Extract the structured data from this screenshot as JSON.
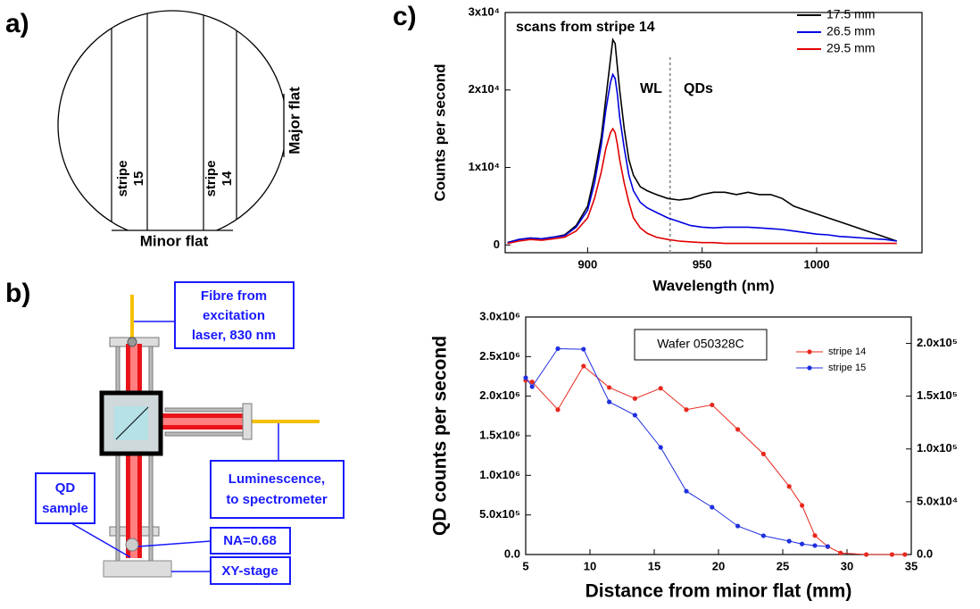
{
  "panel_a": {
    "label": "a)",
    "stripe_15": [
      "stripe",
      "15"
    ],
    "stripe_14": [
      "stripe",
      "14"
    ],
    "minor_flat": "Minor flat",
    "major_flat": "Major flat"
  },
  "panel_b": {
    "label": "b)",
    "fibre": [
      "Fibre from",
      "excitation",
      "laser, 830 nm"
    ],
    "luminescence": [
      "Luminescence,",
      "to spectrometer"
    ],
    "sample": [
      "QD",
      "sample"
    ],
    "na": "NA=0.68",
    "stage": "XY-stage"
  },
  "panel_c_label": "c)",
  "chart_data": [
    {
      "type": "line",
      "xlabel": "Wavelength (nm)",
      "ylabel": "Counts per second",
      "annotations": [
        "scans from stripe 14",
        "WL",
        "QDs"
      ],
      "divider_x": 936,
      "xlim": [
        864,
        1046
      ],
      "xticks": [
        900,
        950,
        1000
      ],
      "ylim": [
        -1000,
        30000
      ],
      "yticks": [
        0,
        {
          "value": 10000,
          "label": "1x10⁴"
        },
        {
          "value": 20000,
          "label": "2x10⁴"
        },
        {
          "value": 30000,
          "label": "3x10⁴"
        }
      ],
      "legend": "upper right",
      "x": [
        865,
        870,
        875,
        880,
        885,
        890,
        895,
        900,
        903,
        906,
        908,
        910,
        911,
        912,
        913,
        914,
        916,
        918,
        920,
        923,
        926,
        930,
        935,
        940,
        945,
        950,
        955,
        960,
        965,
        970,
        975,
        980,
        985,
        990,
        995,
        1000,
        1005,
        1010,
        1015,
        1020,
        1025,
        1030,
        1035
      ],
      "series": [
        {
          "name": "17.5 mm",
          "color": "#000000",
          "values": [
            300,
            700,
            900,
            800,
            1000,
            1300,
            2500,
            5000,
            9000,
            14000,
            19000,
            24000,
            26500,
            26000,
            23000,
            20000,
            15000,
            11000,
            9000,
            7500,
            7000,
            6500,
            6000,
            5800,
            6000,
            6500,
            6800,
            6800,
            6500,
            6800,
            6500,
            6500,
            6000,
            5000,
            4500,
            4000,
            3500,
            3000,
            2500,
            2000,
            1500,
            1000,
            500
          ]
        },
        {
          "name": "26.5 mm",
          "color": "#0000e0",
          "values": [
            300,
            700,
            900,
            800,
            1000,
            1200,
            2300,
            4500,
            8000,
            13000,
            17500,
            21000,
            22000,
            21500,
            19500,
            16500,
            12500,
            9000,
            7000,
            5500,
            4800,
            4200,
            3500,
            3000,
            2500,
            2300,
            2200,
            2300,
            2300,
            2300,
            2200,
            2100,
            2000,
            1800,
            1600,
            1400,
            1300,
            1100,
            1000,
            900,
            800,
            700,
            500
          ]
        },
        {
          "name": "29.5 mm",
          "color": "#e00000",
          "values": [
            200,
            500,
            700,
            600,
            800,
            1000,
            1800,
            3500,
            6000,
            9500,
            12500,
            14500,
            15000,
            14500,
            13000,
            11000,
            8000,
            5500,
            3500,
            2200,
            1500,
            1000,
            700,
            500,
            400,
            300,
            300,
            200,
            200,
            200,
            200,
            200,
            200,
            200,
            200,
            200,
            200,
            200,
            200,
            200,
            200,
            200,
            200
          ]
        }
      ]
    },
    {
      "type": "line",
      "markers": true,
      "xlabel": "Distance from minor flat (mm)",
      "ylabel": "QD counts per second",
      "annotations": [
        "Wafer 050328C"
      ],
      "xlim": [
        5,
        35
      ],
      "xticks": [
        5,
        10,
        15,
        20,
        25,
        30,
        35
      ],
      "ylim": [
        0,
        3000000
      ],
      "yticks": [
        {
          "value": 0,
          "label": "0.0"
        },
        {
          "value": 500000,
          "label": "5.0x10⁵"
        },
        {
          "value": 1000000,
          "label": "1.0x10⁶"
        },
        {
          "value": 1500000,
          "label": "1.5x10⁶"
        },
        {
          "value": 2000000,
          "label": "2.0x10⁶"
        },
        {
          "value": 2500000,
          "label": "2.5x10⁶"
        },
        {
          "value": 3000000,
          "label": "3.0x10⁶"
        }
      ],
      "y2lim": [
        0,
        225000
      ],
      "y2ticks": [
        {
          "value": 0,
          "label": "0.0"
        },
        {
          "value": 50000,
          "label": "5.0x10⁴"
        },
        {
          "value": 100000,
          "label": "1.0x10⁵"
        },
        {
          "value": 150000,
          "label": "1.5x10⁵"
        },
        {
          "value": 200000,
          "label": "2.0x10⁵"
        }
      ],
      "legend": "upper right",
      "series": [
        {
          "name": "stripe 14",
          "color": "#e8281e",
          "x": [
            5,
            5.5,
            7.5,
            9.5,
            11.5,
            13.5,
            15.5,
            17.5,
            19.5,
            21.5,
            23.5,
            25.5,
            26.5,
            27.5,
            28.5,
            29.5,
            31.5,
            33.5,
            34.5
          ],
          "values": [
            2200000,
            2180000,
            1830000,
            2380000,
            2110000,
            1970000,
            2100000,
            1830000,
            1890000,
            1580000,
            1270000,
            860000,
            620000,
            240000,
            100000,
            20000,
            0,
            0,
            0
          ]
        },
        {
          "name": "stripe 15",
          "color": "#1f2fe0",
          "axis": "y2",
          "x": [
            5,
            5.5,
            7.5,
            9.5,
            11.5,
            13.5,
            15.5,
            17.5,
            19.5,
            21.5,
            23.5,
            25.5,
            26.5,
            27.5,
            28.5
          ],
          "values": [
            167500,
            159000,
            195000,
            194500,
            144600,
            132000,
            101500,
            60000,
            44800,
            27000,
            17800,
            12700,
            10000,
            8500,
            7600
          ]
        }
      ]
    }
  ]
}
